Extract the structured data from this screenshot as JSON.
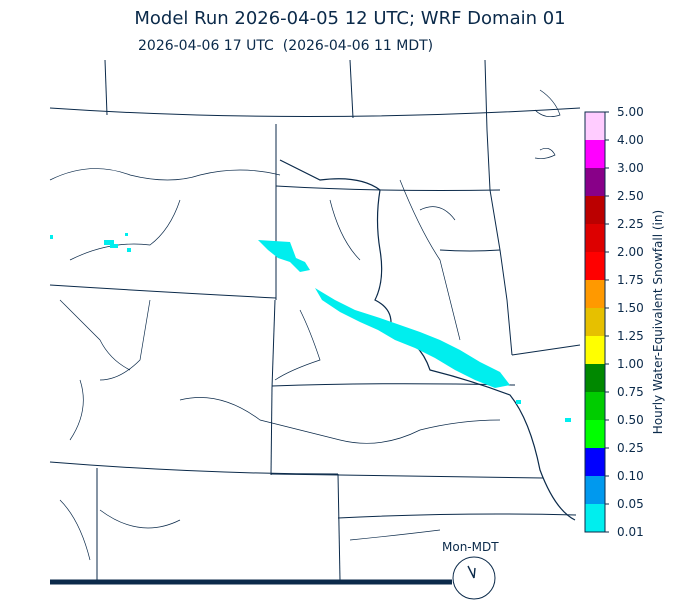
{
  "header": {
    "title": "Model Run 2026-04-05 12 UTC; WRF Domain 01",
    "subtitle": "2026-04-06 17 UTC  (2026-04-06 11 MDT)"
  },
  "colorbar": {
    "title": "Hourly Water-Equivalent Snowfall (in)",
    "levels": [
      "0.01",
      "0.05",
      "0.10",
      "0.25",
      "0.50",
      "0.75",
      "1.00",
      "1.25",
      "1.50",
      "1.75",
      "2.00",
      "2.25",
      "2.50",
      "3.00",
      "4.00",
      "5.00"
    ],
    "colors": [
      "#00eeee",
      "#0099ee",
      "#0000ff",
      "#00ff00",
      "#00cc00",
      "#008800",
      "#ffff00",
      "#e6c000",
      "#ff9900",
      "#ff0000",
      "#dd0000",
      "#bb0000",
      "#880088",
      "#ff00ff",
      "#ffccff"
    ]
  },
  "clock": {
    "label": "Mon-MDT"
  }
}
